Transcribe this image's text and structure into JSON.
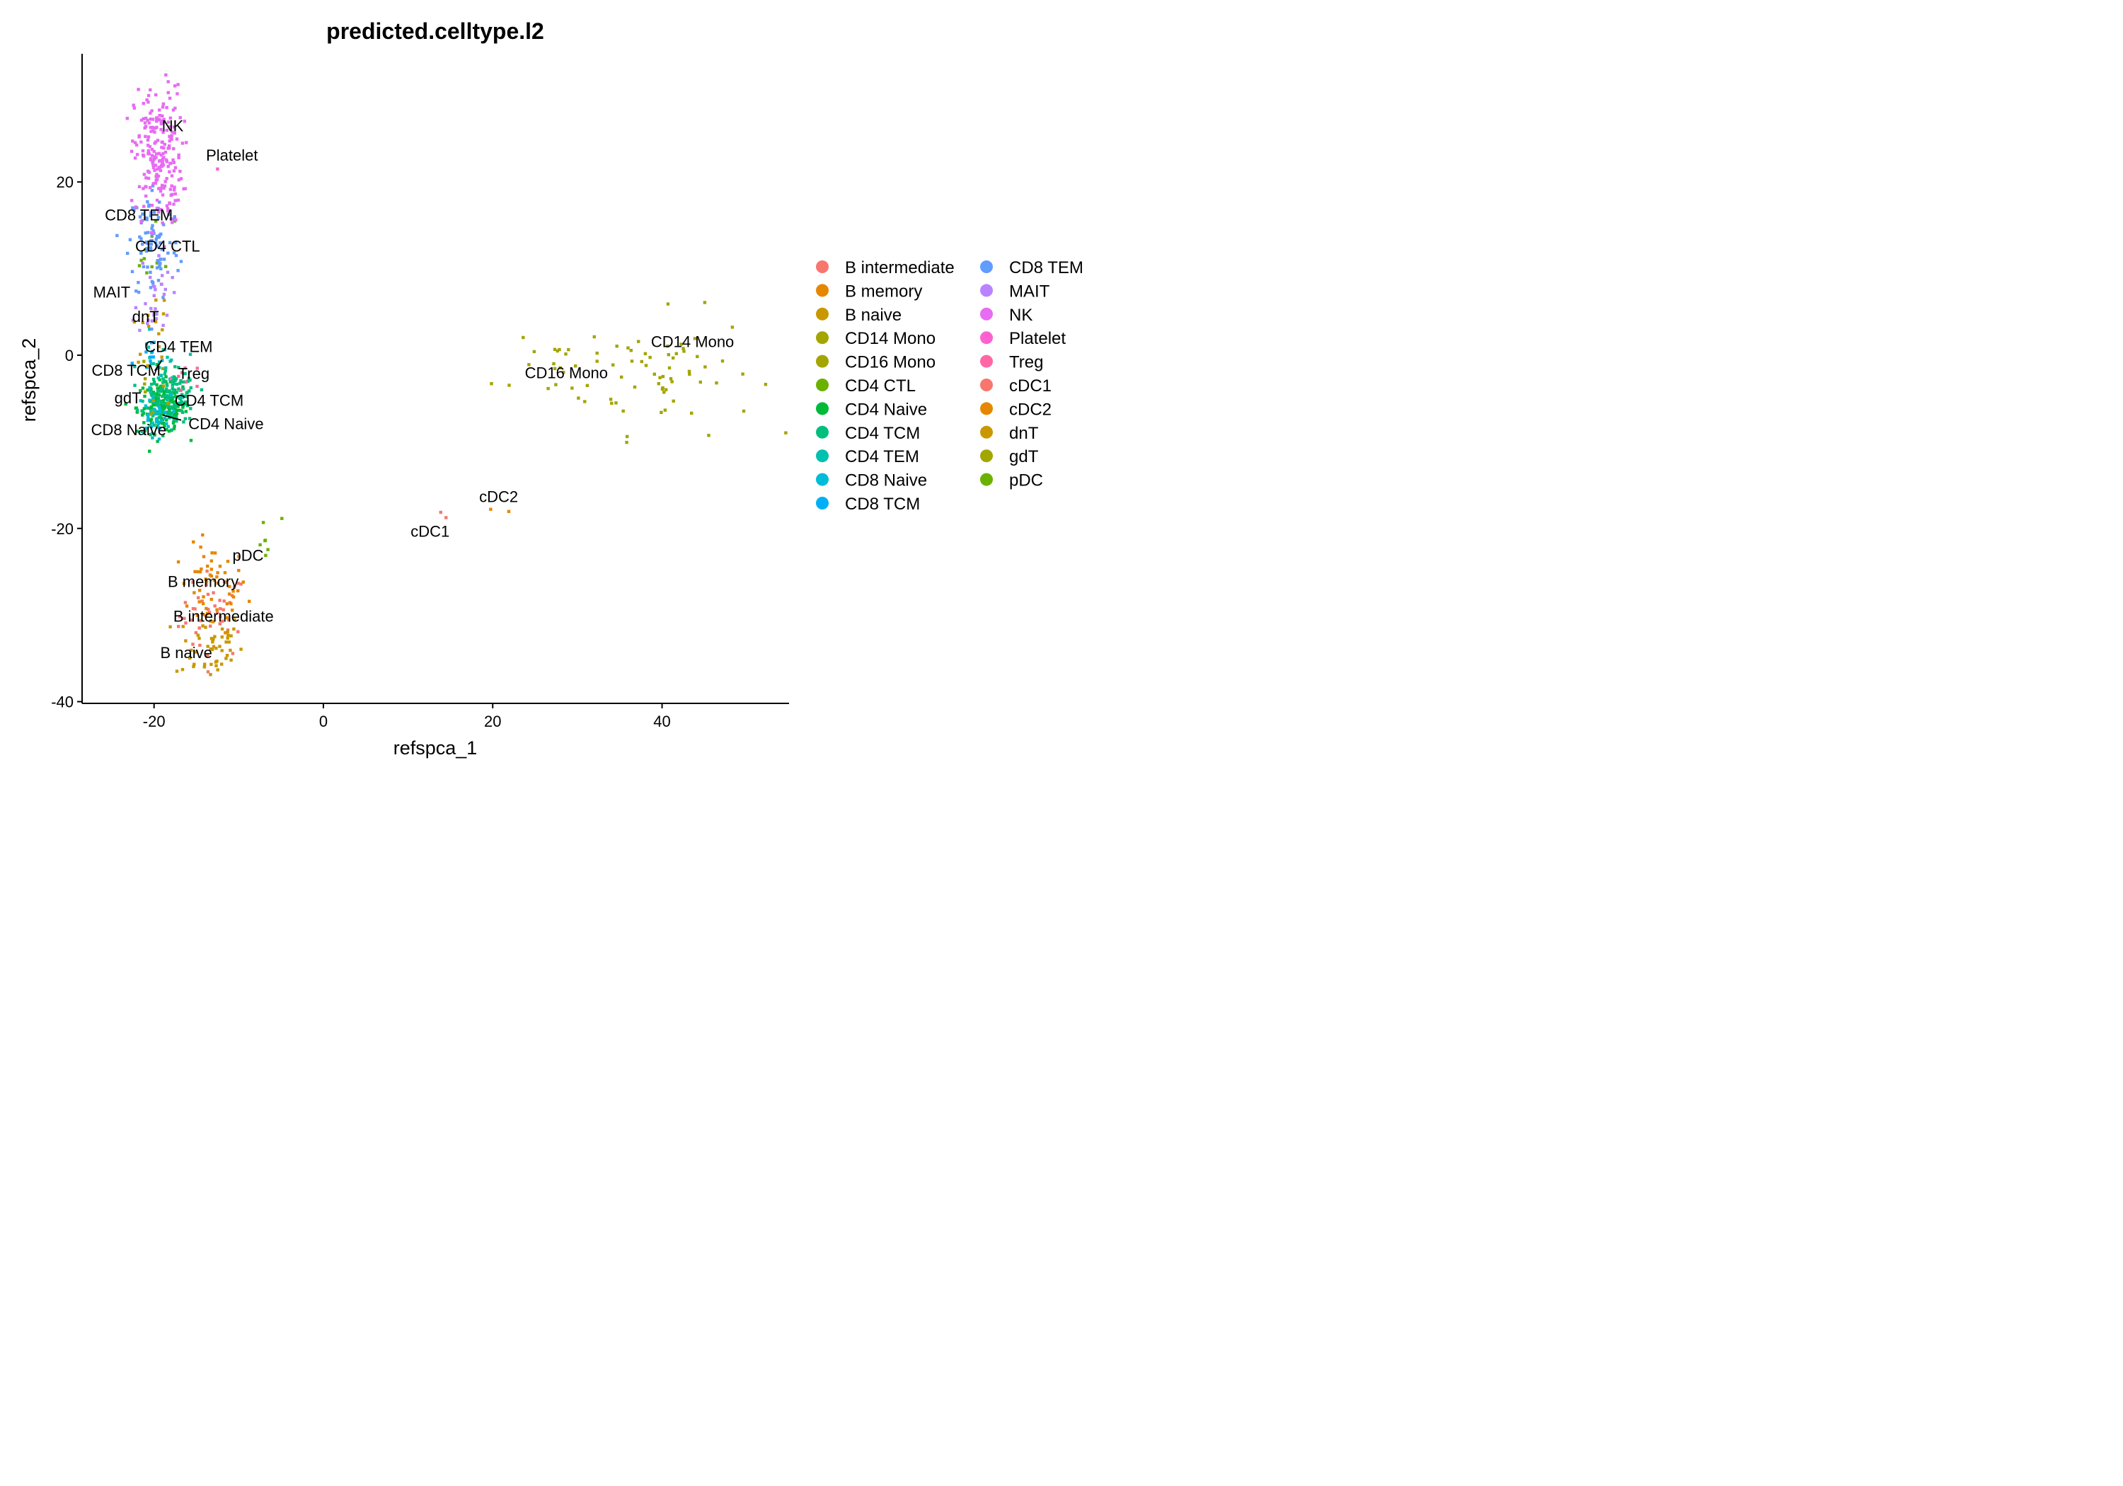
{
  "chart_data": {
    "type": "scatter",
    "title": "predicted.celltype.l2",
    "xlabel": "refspca_1",
    "ylabel": "refspca_2",
    "xlim": [
      -28.5,
      55
    ],
    "ylim": [
      -40.2,
      34.8
    ],
    "xticks": [
      -20,
      0,
      20,
      40
    ],
    "yticks": [
      -40,
      -20,
      0,
      20
    ],
    "legend_position": "right",
    "legend_columns": 2,
    "categories": [
      {
        "name": "B intermediate",
        "color": "#F8766D",
        "center": [
          -13.0,
          -30.0
        ],
        "spread": [
          2.0,
          2.5
        ],
        "n": 45
      },
      {
        "name": "B memory",
        "color": "#E58700",
        "center": [
          -13.0,
          -27.0
        ],
        "spread": [
          2.0,
          2.5
        ],
        "n": 55
      },
      {
        "name": "B naive",
        "color": "#C99800",
        "center": [
          -13.5,
          -33.5
        ],
        "spread": [
          2.0,
          2.0
        ],
        "n": 50
      },
      {
        "name": "CD14 Mono",
        "color": "#A3A500",
        "center": [
          41.0,
          -2.0
        ],
        "spread": [
          5.0,
          3.5
        ],
        "n": 55
      },
      {
        "name": "CD16 Mono",
        "color": "#A3A500",
        "center": [
          28.0,
          -1.5
        ],
        "spread": [
          4.0,
          2.5
        ],
        "n": 25
      },
      {
        "name": "CD4 CTL",
        "color": "#6BB100",
        "center": [
          -20.0,
          12.0
        ],
        "spread": [
          1.2,
          2.0
        ],
        "n": 12
      },
      {
        "name": "CD4 Naive",
        "color": "#00BA38",
        "center": [
          -19.0,
          -6.0
        ],
        "spread": [
          1.5,
          1.5
        ],
        "n": 150
      },
      {
        "name": "CD4 TCM",
        "color": "#00BF7D",
        "center": [
          -18.0,
          -5.0
        ],
        "spread": [
          1.5,
          1.5
        ],
        "n": 130
      },
      {
        "name": "CD4 TEM",
        "color": "#00C0AF",
        "center": [
          -19.5,
          -1.5
        ],
        "spread": [
          1.2,
          2.0
        ],
        "n": 25
      },
      {
        "name": "CD8 Naive",
        "color": "#00BCD8",
        "center": [
          -20.0,
          -7.0
        ],
        "spread": [
          1.0,
          1.2
        ],
        "n": 35
      },
      {
        "name": "CD8 TCM",
        "color": "#00B0F6",
        "center": [
          -20.5,
          -1.0
        ],
        "spread": [
          1.0,
          1.5
        ],
        "n": 12
      },
      {
        "name": "CD8 TEM",
        "color": "#619CFF",
        "center": [
          -20.0,
          13.0
        ],
        "spread": [
          1.5,
          3.5
        ],
        "n": 90
      },
      {
        "name": "MAIT",
        "color": "#B983FF",
        "center": [
          -20.0,
          7.0
        ],
        "spread": [
          1.0,
          2.5
        ],
        "n": 30
      },
      {
        "name": "NK",
        "color": "#E76BF3",
        "center": [
          -19.5,
          23.0
        ],
        "spread": [
          1.4,
          4.0
        ],
        "n": 220
      },
      {
        "name": "Platelet",
        "color": "#FD61D1",
        "center": [
          -12.5,
          21.5
        ],
        "spread": [
          0.0,
          0.0
        ],
        "n": 1
      },
      {
        "name": "Treg",
        "color": "#FF67A4",
        "center": [
          -16.5,
          -2.5
        ],
        "spread": [
          1.5,
          1.0
        ],
        "n": 8
      },
      {
        "name": "cDC1",
        "color": "#F8766D",
        "center": [
          15.0,
          -18.5
        ],
        "spread": [
          0.6,
          0.3
        ],
        "n": 2
      },
      {
        "name": "cDC2",
        "color": "#E58700",
        "center": [
          19.0,
          -17.5
        ],
        "spread": [
          2.0,
          0.8
        ],
        "n": 2
      },
      {
        "name": "dnT",
        "color": "#C99800",
        "center": [
          -20.0,
          3.0
        ],
        "spread": [
          1.2,
          2.0
        ],
        "n": 15
      },
      {
        "name": "gdT",
        "color": "#A3A500",
        "center": [
          -20.5,
          -4.0
        ],
        "spread": [
          1.0,
          1.5
        ],
        "n": 10
      },
      {
        "name": "pDC",
        "color": "#6BB100",
        "center": [
          -7.0,
          -21.5
        ],
        "spread": [
          0.8,
          2.2
        ],
        "n": 7
      }
    ],
    "cluster_labels": [
      {
        "text": "NK",
        "x": -17.8,
        "y": 26.5
      },
      {
        "text": "Platelet",
        "x": -10.8,
        "y": 23.1
      },
      {
        "text": "CD8 TEM",
        "x": -21.8,
        "y": 16.2
      },
      {
        "text": "CD4 CTL",
        "x": -18.4,
        "y": 12.6
      },
      {
        "text": "MAIT",
        "x": -25.0,
        "y": 7.3
      },
      {
        "text": "dnT",
        "x": -21.0,
        "y": 4.5
      },
      {
        "text": "CD4 TEM",
        "x": -17.1,
        "y": 1.0
      },
      {
        "text": "CD8 TCM",
        "x": -23.3,
        "y": -1.7
      },
      {
        "text": "Treg",
        "x": -15.3,
        "y": -2.1
      },
      {
        "text": "gdT",
        "x": -23.1,
        "y": -4.9
      },
      {
        "text": "CD4 TCM",
        "x": -13.5,
        "y": -5.2
      },
      {
        "text": "CD4 Naive",
        "x": -11.5,
        "y": -7.9
      },
      {
        "text": "CD8 Naive",
        "x": -23.0,
        "y": -8.6
      },
      {
        "text": "CD14 Mono",
        "x": 43.6,
        "y": 1.6
      },
      {
        "text": "CD16 Mono",
        "x": 28.7,
        "y": -2.0
      },
      {
        "text": "cDC2",
        "x": 20.7,
        "y": -16.3
      },
      {
        "text": "cDC1",
        "x": 12.6,
        "y": -20.3
      },
      {
        "text": "pDC",
        "x": -8.9,
        "y": -23.1
      },
      {
        "text": "B memory",
        "x": -14.2,
        "y": -26.1
      },
      {
        "text": "B intermediate",
        "x": -11.8,
        "y": -30.1
      },
      {
        "text": "B naive",
        "x": -16.2,
        "y": -34.3
      }
    ],
    "label_segments": [
      {
        "x1": -19.1,
        "y1": -0.6,
        "x2": -19.9,
        "y2": -1.8
      },
      {
        "x1": -16.8,
        "y1": -7.5,
        "x2": -19.0,
        "y2": -6.9
      }
    ]
  }
}
